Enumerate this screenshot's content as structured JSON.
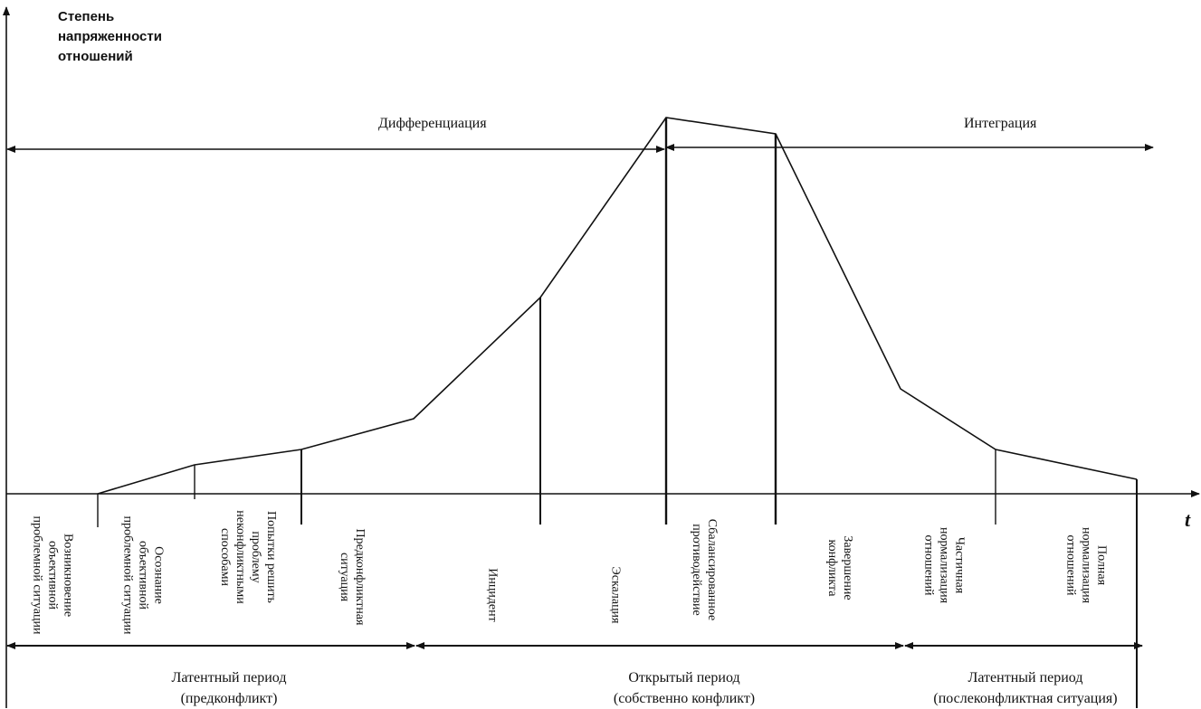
{
  "diagram": {
    "y_axis_label": "Степень напряженности отношений",
    "x_axis_label": "t",
    "phases": {
      "differentiation": "Дифференциация",
      "integration": "Интеграция"
    },
    "stages": [
      "Возникновение объективной проблемной ситуации",
      "Осознание объективной проблемной ситуации",
      "Попытки решить проблему неконфликтными способами",
      "Предконфликтная ситуация",
      "Инцидент",
      "Эскалация",
      "Сбалансированное противодействие",
      "Завершение конфликта",
      "Частичная нормализация отношений",
      "Полная нормализация отношений"
    ],
    "periods": [
      {
        "name": "Латентный период",
        "sub": "(предконфликт)"
      },
      {
        "name": "Открытый период",
        "sub": "(собственно конфликт)"
      },
      {
        "name": "Латентный период",
        "sub": "(послеконфликтная ситуация)"
      }
    ]
  }
}
